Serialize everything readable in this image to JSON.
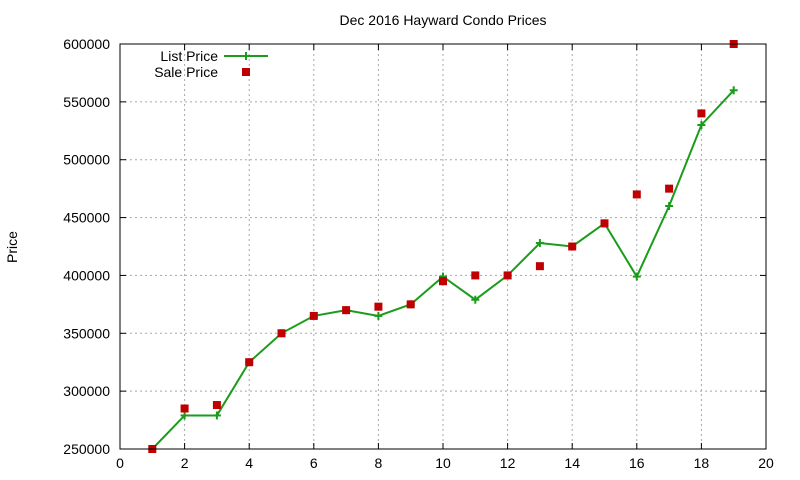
{
  "chart_data": {
    "type": "line",
    "title": "Dec 2016 Hayward Condo Prices",
    "xlabel": "",
    "ylabel": "Price",
    "xlim": [
      0,
      20
    ],
    "ylim": [
      250000,
      600000
    ],
    "xticks": [
      0,
      2,
      4,
      6,
      8,
      10,
      12,
      14,
      16,
      18,
      20
    ],
    "yticks": [
      250000,
      300000,
      350000,
      400000,
      450000,
      500000,
      550000,
      600000
    ],
    "grid": true,
    "legend_position": "top-left",
    "series": [
      {
        "name": "List Price",
        "style": "line-with-plus-markers",
        "color": "#1a9c1a",
        "x": [
          1,
          2,
          3,
          4,
          5,
          6,
          7,
          8,
          9,
          10,
          11,
          12,
          13,
          14,
          15,
          16,
          17,
          18,
          19
        ],
        "values": [
          250000,
          279000,
          279000,
          325000,
          350000,
          365000,
          370000,
          365000,
          375000,
          399000,
          379000,
          400000,
          428000,
          425000,
          445000,
          399000,
          460000,
          530000,
          560000
        ]
      },
      {
        "name": "Sale Price",
        "style": "square-markers",
        "color": "#c00000",
        "x": [
          1,
          2,
          3,
          4,
          5,
          6,
          7,
          8,
          9,
          10,
          11,
          12,
          13,
          14,
          15,
          16,
          17,
          18,
          19
        ],
        "values": [
          250000,
          285000,
          288000,
          325000,
          350000,
          365000,
          370000,
          373000,
          375000,
          395000,
          400000,
          400000,
          408000,
          425000,
          445000,
          470000,
          475000,
          540000,
          600000
        ]
      }
    ]
  }
}
